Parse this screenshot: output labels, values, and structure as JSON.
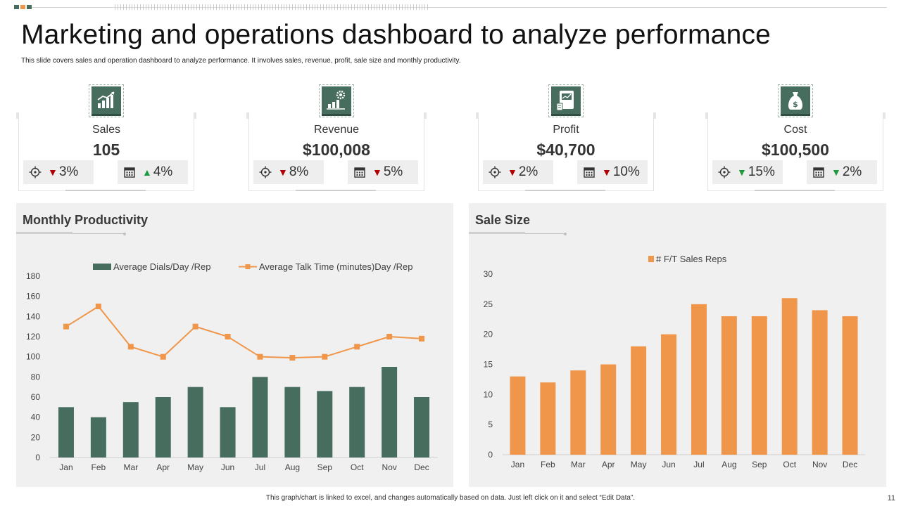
{
  "title": "Marketing and operations dashboard to analyze performance",
  "subtitle": "This slide covers sales and operation dashboard to analyze performance. It involves sales, revenue, profit, sale size and monthly productivity.",
  "colors": {
    "accent_green": "#466d5e",
    "accent_orange": "#f0964a",
    "down": "#b00000",
    "up": "#1e9b3c"
  },
  "kpis": [
    {
      "name": "Sales",
      "value": "105",
      "icon": "growth-chart-icon",
      "target": {
        "icon": "target-icon",
        "direction": "down",
        "arrow": "▼",
        "value": "3%"
      },
      "calendar": {
        "icon": "calendar-icon",
        "direction": "up",
        "arrow": "▲",
        "value": "4%"
      }
    },
    {
      "name": "Revenue",
      "value": "$100,008",
      "icon": "revenue-gear-chart-icon",
      "target": {
        "icon": "target-icon",
        "direction": "down",
        "arrow": "▼",
        "value": "8%"
      },
      "calendar": {
        "icon": "calendar-icon",
        "direction": "down",
        "arrow": "▼",
        "value": "5%"
      }
    },
    {
      "name": "Profit",
      "value": "$40,700",
      "icon": "profit-document-icon",
      "target": {
        "icon": "target-icon",
        "direction": "down",
        "arrow": "▼",
        "value": "2%"
      },
      "calendar": {
        "icon": "calendar-icon",
        "direction": "down",
        "arrow": "▼",
        "value": "10%"
      }
    },
    {
      "name": "Cost",
      "value": "$100,500",
      "icon": "money-bag-icon",
      "target": {
        "icon": "target-icon",
        "direction": "down",
        "arrow": "▼",
        "value": "15%"
      },
      "calendar": {
        "icon": "calendar-icon",
        "direction": "down",
        "arrow": "▼",
        "value": "2%"
      }
    }
  ],
  "chart_data": [
    {
      "type": "bar+line",
      "title": "Monthly Productivity",
      "categories": [
        "Jan",
        "Feb",
        "Mar",
        "Apr",
        "May",
        "Jun",
        "Jul",
        "Aug",
        "Sep",
        "Oct",
        "Nov",
        "Dec"
      ],
      "series": [
        {
          "name": "Average Dials/Day /Rep",
          "type": "bar",
          "color": "#466d5e",
          "values": [
            50,
            40,
            55,
            60,
            70,
            50,
            80,
            70,
            66,
            70,
            90,
            60
          ]
        },
        {
          "name": "Average Talk Time (minutes)Day /Rep",
          "type": "line",
          "color": "#f0964a",
          "values": [
            130,
            150,
            110,
            100,
            130,
            120,
            100,
            99,
            100,
            110,
            120,
            118
          ]
        }
      ],
      "ylim": [
        0,
        180
      ],
      "yticks": [
        0,
        20,
        40,
        60,
        80,
        100,
        120,
        140,
        160,
        180
      ],
      "legend": "top",
      "grid": false
    },
    {
      "type": "bar",
      "title": "Sale Size",
      "categories": [
        "Jan",
        "Feb",
        "Mar",
        "Apr",
        "May",
        "Jun",
        "Jul",
        "Aug",
        "Sep",
        "Oct",
        "Nov",
        "Dec"
      ],
      "series": [
        {
          "name": "# F/T Sales Reps",
          "type": "bar",
          "color": "#f0964a",
          "values": [
            13,
            12,
            14,
            15,
            18,
            20,
            25,
            23,
            23,
            26,
            24,
            23
          ]
        }
      ],
      "ylim": [
        0,
        30
      ],
      "yticks": [
        0,
        5,
        10,
        15,
        20,
        25,
        30
      ],
      "legend": "top",
      "grid": false
    }
  ],
  "footer": "This graph/chart is linked to excel, and changes automatically based on data. Just left click on it and select “Edit Data”.",
  "page_number": "11"
}
